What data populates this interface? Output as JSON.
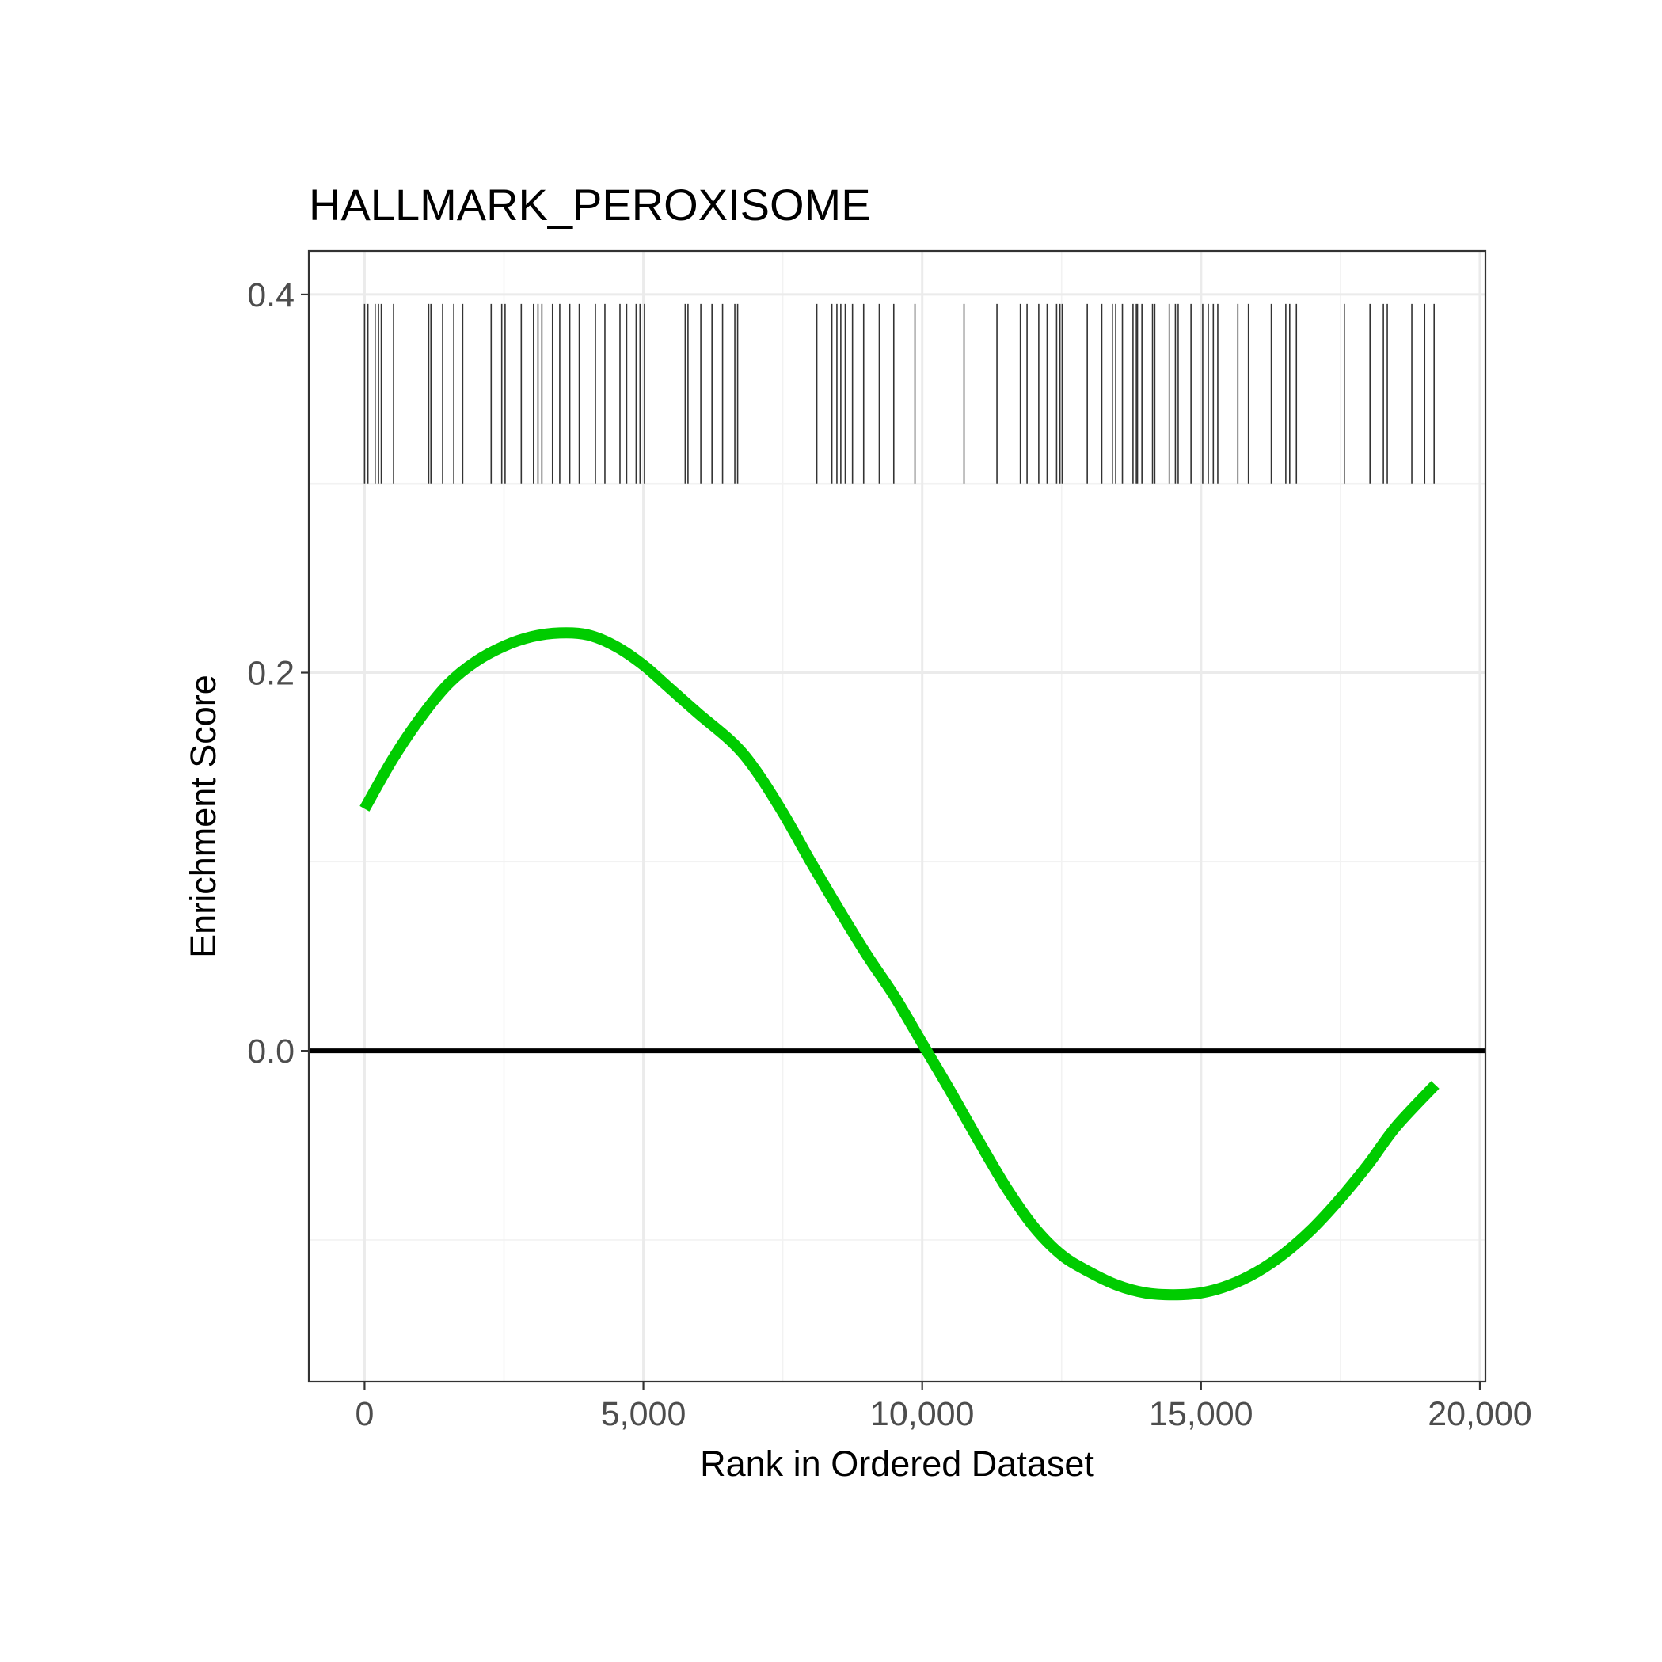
{
  "chart_data": {
    "type": "line",
    "title": "HALLMARK_PEROXISOME",
    "xlabel": "Rank in Ordered Dataset",
    "ylabel": "Enrichment Score",
    "xlim": [
      -1000,
      20100
    ],
    "ylim": [
      -0.175,
      0.423
    ],
    "x_ticks": [
      0,
      5000,
      10000,
      15000,
      20000
    ],
    "x_tick_labels": [
      "0",
      "5,000",
      "10,000",
      "15,000",
      "20,000"
    ],
    "y_ticks": [
      0.0,
      0.2,
      0.4
    ],
    "y_tick_labels": [
      "0.0",
      "0.2",
      "0.4"
    ],
    "x_minor_gridlines": [
      2500,
      7500,
      12500,
      17500
    ],
    "y_minor_gridlines": [
      -0.1,
      0.1,
      0.3
    ],
    "grid": true,
    "legend": "none",
    "reference_line": {
      "y": 0.0,
      "color": "#000000"
    },
    "curve": {
      "color": "#00cc00",
      "x": [
        0,
        500,
        1000,
        1500,
        2000,
        2500,
        3000,
        3500,
        4000,
        4500,
        5000,
        5500,
        6000,
        6600,
        7000,
        7500,
        8000,
        8500,
        9000,
        9500,
        10000,
        10500,
        11000,
        11500,
        12000,
        12500,
        13000,
        13500,
        14000,
        14500,
        15000,
        15500,
        16000,
        16500,
        17000,
        17500,
        18000,
        18500,
        19200
      ],
      "y": [
        0.128,
        0.154,
        0.176,
        0.194,
        0.206,
        0.214,
        0.219,
        0.221,
        0.22,
        0.214,
        0.204,
        0.191,
        0.178,
        0.163,
        0.149,
        0.126,
        0.1,
        0.075,
        0.051,
        0.029,
        0.004,
        -0.021,
        -0.047,
        -0.072,
        -0.093,
        -0.108,
        -0.117,
        -0.124,
        -0.128,
        -0.129,
        -0.128,
        -0.124,
        -0.117,
        -0.107,
        -0.094,
        -0.078,
        -0.06,
        -0.04,
        -0.018
      ]
    },
    "hit_ranks": [
      0,
      60,
      190,
      250,
      300,
      520,
      1150,
      1190,
      1400,
      1600,
      1760,
      2270,
      2460,
      2520,
      2810,
      3030,
      3110,
      3180,
      3370,
      3500,
      3680,
      3850,
      4140,
      4310,
      4580,
      4700,
      4870,
      4940,
      5020,
      5750,
      5800,
      6030,
      6230,
      6420,
      6640,
      6690,
      8110,
      8380,
      8470,
      8540,
      8620,
      8750,
      8950,
      9230,
      9490,
      9870,
      10750,
      11340,
      11760,
      11880,
      12090,
      12240,
      12410,
      12470,
      12510,
      12960,
      13220,
      13410,
      13470,
      13590,
      13780,
      13840,
      13860,
      13940,
      14130,
      14170,
      14430,
      14540,
      14590,
      14820,
      15030,
      15130,
      15220,
      15300,
      15660,
      15850,
      16260,
      16520,
      16590,
      16710,
      17570,
      18030,
      18270,
      18340,
      18780,
      19010,
      19180
    ]
  }
}
